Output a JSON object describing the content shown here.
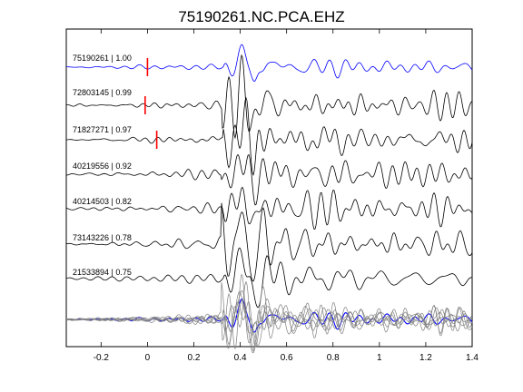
{
  "chart_data": {
    "type": "line",
    "title": "75190261.NC.PCA.EHZ",
    "xlabel": "",
    "ylabel": "",
    "xlim": [
      -0.35,
      1.4
    ],
    "xticks": [
      -0.2,
      0,
      0.2,
      0.4,
      0.6,
      0.8,
      1,
      1.2,
      1.4
    ],
    "xtick_labels": [
      "-0.2",
      "0",
      "0.2",
      "0.4",
      "0.6",
      "0.8",
      "1",
      "1.2",
      "1.4"
    ],
    "grid": false,
    "colors": {
      "reference": "#0000ff",
      "trace": "#000000",
      "stack": "#808080",
      "pick": "#ff0000"
    },
    "traces": [
      {
        "label": "75190261 | 1.00",
        "pick": 0.0,
        "color": "#0000ff"
      },
      {
        "label": "72803145 | 0.99",
        "pick": -0.01,
        "color": "#000000"
      },
      {
        "label": "71827271 | 0.97",
        "pick": 0.04,
        "color": "#000000"
      },
      {
        "label": "40219556 | 0.92",
        "color": "#000000"
      },
      {
        "label": "40214503 | 0.82",
        "color": "#000000"
      },
      {
        "label": "73143226 | 0.78",
        "color": "#000000"
      },
      {
        "label": "21533894 | 0.75",
        "color": "#000000"
      }
    ]
  }
}
